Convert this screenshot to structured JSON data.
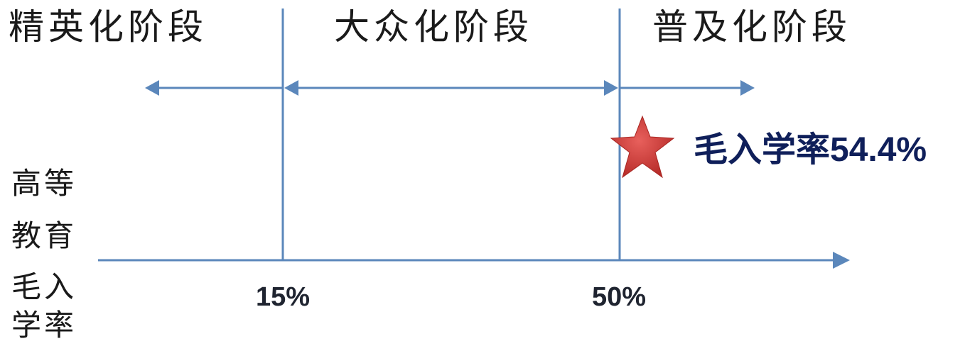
{
  "stages": [
    {
      "label": "精英化阶段"
    },
    {
      "label": "大众化阶段"
    },
    {
      "label": "普及化阶段"
    }
  ],
  "axis_label_lines": [
    "高等",
    "教育",
    "毛入",
    "学率"
  ],
  "thresholds": [
    {
      "label": "15%",
      "value": 15
    },
    {
      "label": "50%",
      "value": 50
    }
  ],
  "current": {
    "label": "毛入学率54.4%",
    "value": 54.4
  },
  "colors": {
    "line": "#5b87bb",
    "star": "#cc3b38",
    "highlight_text": "#0f1f5a",
    "text": "#1a1a1a"
  }
}
